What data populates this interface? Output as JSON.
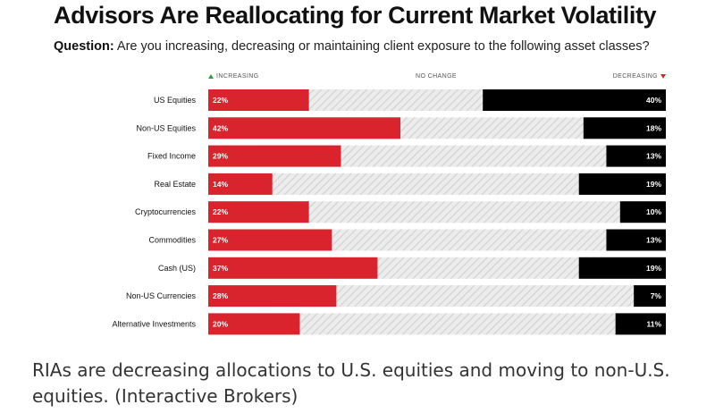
{
  "header": {
    "title": "Advisors Are Reallocating for Current Market Volatility",
    "question_label": "Question:",
    "question_text": " Are you increasing, decreasing or maintaining client exposure to the following asset classes?"
  },
  "legend": {
    "increasing": "INCREASING",
    "no_change": "NO CHANGE",
    "decreasing": "DECREASING"
  },
  "caption": "RIAs are decreasing allocations to U.S. equities and moving to non-U.S. equities. (Interactive Brokers)",
  "colors": {
    "increasing": "#d9232d",
    "decreasing": "#000000",
    "no_change": "#e6e6e6",
    "legend_up": "#2e9e3e",
    "legend_down": "#d9232d"
  },
  "chart_data": {
    "type": "bar",
    "orientation": "horizontal-stacked-100",
    "categories": [
      "US Equities",
      "Non-US Equities",
      "Fixed Income",
      "Real Estate",
      "Cryptocurrencies",
      "Commodities",
      "Cash (US)",
      "Non-US Currencies",
      "Alternative Investments"
    ],
    "series": [
      {
        "name": "INCREASING",
        "values": [
          22,
          42,
          29,
          14,
          22,
          27,
          37,
          28,
          20
        ],
        "labels": [
          "22%",
          "42%",
          "29%",
          "14%",
          "22%",
          "27%",
          "37%",
          "28%",
          "20%"
        ]
      },
      {
        "name": "DECREASING",
        "values": [
          40,
          18,
          13,
          19,
          10,
          13,
          19,
          7,
          11
        ],
        "labels": [
          "40%",
          "18%",
          "13%",
          "19%",
          "10%",
          "13%",
          "19%",
          "7%",
          "11%"
        ]
      }
    ],
    "xlim": [
      0,
      100
    ]
  }
}
